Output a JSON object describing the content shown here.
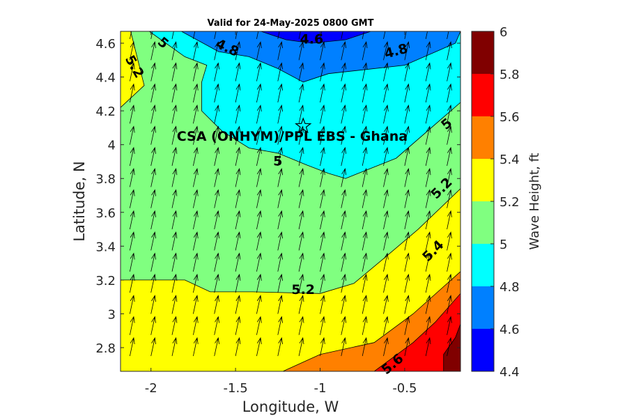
{
  "chart_data": {
    "type": "contour",
    "title": "Valid for 24-May-2025 0800 GMT",
    "xlabel": "Longitude, W",
    "ylabel": "Latitude, N",
    "xlim": [
      -2.18,
      -0.17
    ],
    "ylim": [
      2.66,
      4.67
    ],
    "xticks": [
      -2,
      -1.5,
      -1,
      -0.5
    ],
    "xtick_labels": [
      "-2",
      "-1.5",
      "-1",
      "-0.5"
    ],
    "yticks": [
      2.8,
      3.0,
      3.2,
      3.4,
      3.6,
      3.8,
      4.0,
      4.2,
      4.4,
      4.6
    ],
    "ytick_labels": [
      "2.8",
      "3",
      "3.2",
      "3.4",
      "3.6",
      "3.8",
      "4",
      "4.2",
      "4.4",
      "4.6"
    ],
    "colorbar": {
      "label": "Wave Height, ft",
      "levels": [
        4.4,
        4.6,
        4.8,
        5.0,
        5.2,
        5.4,
        5.6,
        5.8,
        6.0
      ],
      "tick_labels": [
        "4.4",
        "4.6",
        "4.8",
        "5",
        "5.2",
        "5.4",
        "5.6",
        "5.8",
        "6"
      ],
      "colors": [
        "#0000ff",
        "#0080ff",
        "#00ffff",
        "#80ff80",
        "#ffff00",
        "#ff8000",
        "#ff0000",
        "#800000"
      ]
    },
    "fill_regions": [
      {
        "level": 5.0,
        "color": "#80ff80",
        "polygon": [
          [
            -2.18,
            4.67
          ],
          [
            -0.17,
            4.67
          ],
          [
            -0.17,
            2.66
          ],
          [
            -2.18,
            2.66
          ]
        ]
      },
      {
        "level": 5.2,
        "color": "#ffff00",
        "polygon": [
          [
            -2.18,
            2.66
          ],
          [
            -2.18,
            3.2
          ],
          [
            -1.8,
            3.2
          ],
          [
            -1.65,
            3.13
          ],
          [
            -1.4,
            3.13
          ],
          [
            -1.0,
            3.12
          ],
          [
            -0.8,
            3.18
          ],
          [
            -0.62,
            3.33
          ],
          [
            -0.42,
            3.5
          ],
          [
            -0.17,
            3.74
          ],
          [
            -0.17,
            2.66
          ]
        ]
      },
      {
        "level": 5.2,
        "color": "#ffff00",
        "polygon": [
          [
            -2.18,
            4.52
          ],
          [
            -2.18,
            4.22
          ],
          [
            -2.04,
            4.35
          ],
          [
            -2.12,
            4.67
          ],
          [
            -2.18,
            4.67
          ]
        ]
      },
      {
        "level": 5.4,
        "color": "#ff8000",
        "polygon": [
          [
            -1.22,
            2.66
          ],
          [
            -1.0,
            2.76
          ],
          [
            -0.68,
            2.83
          ],
          [
            -0.45,
            3.0
          ],
          [
            -0.17,
            3.25
          ],
          [
            -0.17,
            2.66
          ]
        ]
      },
      {
        "level": 5.6,
        "color": "#ff0000",
        "polygon": [
          [
            -0.68,
            2.66
          ],
          [
            -0.45,
            2.83
          ],
          [
            -0.32,
            2.95
          ],
          [
            -0.17,
            3.12
          ],
          [
            -0.17,
            2.66
          ]
        ]
      },
      {
        "level": 5.8,
        "color": "#800000",
        "polygon": [
          [
            -0.27,
            2.66
          ],
          [
            -0.27,
            2.76
          ],
          [
            -0.2,
            2.86
          ],
          [
            -0.17,
            2.94
          ],
          [
            -0.17,
            2.66
          ]
        ]
      },
      {
        "level": 4.8,
        "color": "#00ffff",
        "polygon": [
          [
            -2.01,
            4.67
          ],
          [
            -1.8,
            4.52
          ],
          [
            -1.67,
            4.47
          ],
          [
            -1.7,
            4.37
          ],
          [
            -1.7,
            4.2
          ],
          [
            -1.58,
            4.08
          ],
          [
            -1.42,
            3.98
          ],
          [
            -1.25,
            3.95
          ],
          [
            -1.08,
            3.88
          ],
          [
            -0.95,
            3.83
          ],
          [
            -0.85,
            3.8
          ],
          [
            -0.55,
            3.92
          ],
          [
            -0.17,
            4.25
          ],
          [
            -0.17,
            4.67
          ]
        ]
      },
      {
        "level": 4.6,
        "color": "#0080ff",
        "polygon": [
          [
            -1.82,
            4.67
          ],
          [
            -1.6,
            4.55
          ],
          [
            -1.42,
            4.52
          ],
          [
            -1.25,
            4.45
          ],
          [
            -1.1,
            4.37
          ],
          [
            -0.95,
            4.42
          ],
          [
            -0.5,
            4.47
          ],
          [
            -0.2,
            4.6
          ],
          [
            -0.17,
            4.67
          ]
        ]
      },
      {
        "level": 4.4,
        "color": "#0000ff",
        "polygon": [
          [
            -1.35,
            4.67
          ],
          [
            -1.2,
            4.62
          ],
          [
            -1.05,
            4.6
          ],
          [
            -0.85,
            4.62
          ],
          [
            -0.7,
            4.67
          ]
        ]
      }
    ],
    "contour_labels": [
      {
        "text": "5",
        "x": -1.93,
        "y": 4.6,
        "angle": 40
      },
      {
        "text": "5.2",
        "x": -2.1,
        "y": 4.46,
        "angle": 60
      },
      {
        "text": "4.8",
        "x": -1.55,
        "y": 4.57,
        "angle": 25
      },
      {
        "text": "4.6",
        "x": -1.05,
        "y": 4.62,
        "angle": 0
      },
      {
        "text": "4.8",
        "x": -0.55,
        "y": 4.55,
        "angle": -15
      },
      {
        "text": "5",
        "x": -0.25,
        "y": 4.12,
        "angle": -40
      },
      {
        "text": "5",
        "x": -1.25,
        "y": 3.9,
        "angle": 0
      },
      {
        "text": "5.2",
        "x": -0.28,
        "y": 3.74,
        "angle": -45
      },
      {
        "text": "5.4",
        "x": -0.33,
        "y": 3.37,
        "angle": -45
      },
      {
        "text": "5.2",
        "x": -1.1,
        "y": 3.14,
        "angle": 0
      },
      {
        "text": "5.6",
        "x": -0.57,
        "y": 2.7,
        "angle": -40
      }
    ],
    "annotation": {
      "text": "CSA (ONHYM)/PPL EBS  - Ghana",
      "marker": "star",
      "x": -1.1,
      "y": 4.11
    },
    "vectors": {
      "x_step": 0.125,
      "y_step": 0.125,
      "direction_deg": 12,
      "magnitude": 0.11
    }
  }
}
